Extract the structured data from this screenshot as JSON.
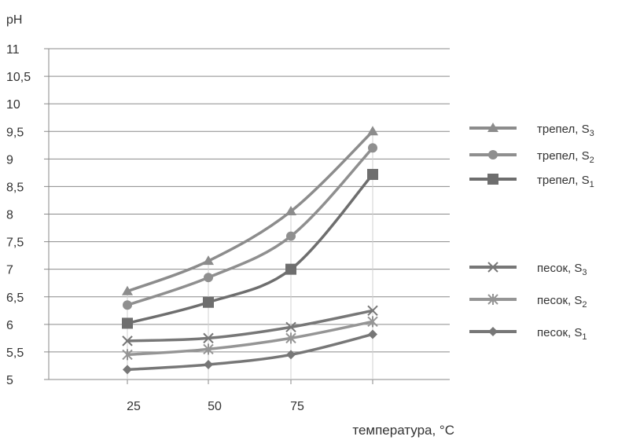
{
  "chart_data": {
    "type": "line",
    "ylabel": "pH",
    "xlabel": "температура, °C",
    "x_tick_labels": [
      "25",
      "50",
      "75",
      ""
    ],
    "x": [
      25,
      50,
      75,
      100
    ],
    "ylim": [
      5,
      11
    ],
    "y_ticks": [
      "5",
      "5,5",
      "6",
      "6,5",
      "7",
      "7,5",
      "8",
      "8,5",
      "9",
      "9,5",
      "10",
      "10,5",
      "11"
    ],
    "grid": "horizontal",
    "legend_position": "right",
    "series": [
      {
        "name": "трепел,  S",
        "sub": "3",
        "marker": "triangle",
        "color": "#8c8c8c",
        "values": [
          6.6,
          7.15,
          8.05,
          9.5
        ]
      },
      {
        "name": "трепел,  S",
        "sub": "2",
        "marker": "circle",
        "color": "#8f8f8f",
        "values": [
          6.35,
          6.85,
          7.6,
          9.2
        ]
      },
      {
        "name": "трепел,  S",
        "sub": "1",
        "marker": "square",
        "color": "#6e6e6e",
        "values": [
          6.02,
          6.4,
          7.0,
          8.72
        ]
      },
      {
        "name": "песок,  S",
        "sub": "3",
        "marker": "x",
        "color": "#777777",
        "values": [
          5.7,
          5.75,
          5.95,
          6.25
        ]
      },
      {
        "name": "песок,  S",
        "sub": "2",
        "marker": "star",
        "color": "#959595",
        "values": [
          5.45,
          5.55,
          5.75,
          6.05
        ]
      },
      {
        "name": "песок,  S",
        "sub": "1",
        "marker": "diamond",
        "color": "#777777",
        "values": [
          5.18,
          5.27,
          5.45,
          5.82
        ]
      }
    ]
  }
}
